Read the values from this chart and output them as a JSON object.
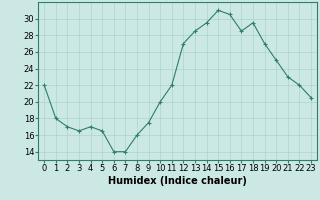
{
  "x": [
    0,
    1,
    2,
    3,
    4,
    5,
    6,
    7,
    8,
    9,
    10,
    11,
    12,
    13,
    14,
    15,
    16,
    17,
    18,
    19,
    20,
    21,
    22,
    23
  ],
  "y": [
    22,
    18,
    17,
    16.5,
    17,
    16.5,
    14,
    14,
    16,
    17.5,
    20,
    22,
    27,
    28.5,
    29.5,
    31,
    30.5,
    28.5,
    29.5,
    27,
    25,
    23,
    22,
    20.5
  ],
  "line_color": "#2e7d6e",
  "marker": "+",
  "background_color": "#cce8e4",
  "grid_major_color": "#aad4ce",
  "xlabel": "Humidex (Indice chaleur)",
  "ylim": [
    13,
    32
  ],
  "xlim": [
    -0.5,
    23.5
  ],
  "yticks": [
    14,
    16,
    18,
    20,
    22,
    24,
    26,
    28,
    30
  ],
  "xticks": [
    0,
    1,
    2,
    3,
    4,
    5,
    6,
    7,
    8,
    9,
    10,
    11,
    12,
    13,
    14,
    15,
    16,
    17,
    18,
    19,
    20,
    21,
    22,
    23
  ],
  "xtick_labels": [
    "0",
    "1",
    "2",
    "3",
    "4",
    "5",
    "6",
    "7",
    "8",
    "9",
    "10",
    "11",
    "12",
    "13",
    "14",
    "15",
    "16",
    "17",
    "18",
    "19",
    "20",
    "21",
    "22",
    "23"
  ],
  "linewidth": 0.8,
  "markersize": 3,
  "font_size": 6,
  "xlabel_fontsize": 7
}
